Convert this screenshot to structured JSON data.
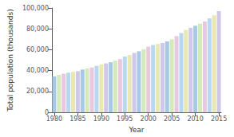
{
  "chart_data": {
    "type": "bar",
    "xlabel": "Year",
    "ylabel": "Total population (thousands)",
    "x": [
      1980,
      1981,
      1982,
      1983,
      1984,
      1985,
      1986,
      1987,
      1988,
      1989,
      1990,
      1991,
      1992,
      1993,
      1994,
      1995,
      1996,
      1997,
      1998,
      1999,
      2000,
      2001,
      2002,
      2003,
      2004,
      2005,
      2006,
      2007,
      2008,
      2009,
      2010,
      2011,
      2012,
      2013,
      2014,
      2015
    ],
    "values": [
      34500,
      36000,
      37000,
      38000,
      38800,
      39500,
      41000,
      42000,
      43000,
      44500,
      46000,
      47000,
      48000,
      49500,
      51000,
      53500,
      55000,
      57000,
      58500,
      60500,
      63000,
      64500,
      65500,
      66500,
      68000,
      70000,
      73000,
      76000,
      79000,
      81000,
      83000,
      85000,
      87000,
      90000,
      93000,
      97000
    ],
    "colors": [
      "#a8c8e8",
      "#d4eab8",
      "#e8c8e0",
      "#b8d8f0",
      "#e8e8b0",
      "#d0c8e8",
      "#a8c8e8",
      "#d4eab8",
      "#e8c8e0",
      "#b8d8f0",
      "#e8e8b0",
      "#d0c8e8",
      "#a8c8e8",
      "#d4eab8",
      "#e8c8e0",
      "#b8d8f0",
      "#e8e8b0",
      "#d0c8e8",
      "#a8c8e8",
      "#d4eab8",
      "#e8c8e0",
      "#b8d8f0",
      "#e8e8b0",
      "#d0c8e8",
      "#a8c8e8",
      "#d4eab8",
      "#e8c8e0",
      "#b8d8f0",
      "#e8e8b0",
      "#d0c8e8",
      "#a8c8e8",
      "#d4eab8",
      "#e8c8e0",
      "#b8d8f0",
      "#e8e8b0",
      "#d0c8e8"
    ],
    "xlim": [
      1979.5,
      2015.5
    ],
    "xticks": [
      1980,
      1985,
      1990,
      1995,
      2000,
      2005,
      2010,
      2015
    ],
    "ylim": [
      0,
      100000
    ],
    "yticks": [
      0,
      {
        "value": 20000,
        "label": "20,000"
      },
      {
        "value": 40000,
        "label": "40,000"
      },
      {
        "value": 60000,
        "label": "60,000"
      },
      {
        "value": 80000,
        "label": "80,000"
      },
      {
        "value": 100000,
        "label": "100,000"
      }
    ],
    "grid": false
  }
}
